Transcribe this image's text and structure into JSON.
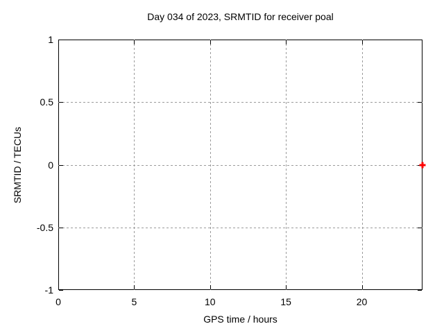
{
  "colors": {
    "background": "#ffffff",
    "axis": "#000000",
    "grid": "#9a9a9a",
    "text": "#000000",
    "marker": "#ff0000"
  },
  "chart_data": {
    "type": "scatter",
    "title": "Day 034 of 2023, SRMTID for receiver poal",
    "xlabel": "GPS time / hours",
    "ylabel": "SRMTID / TECUs",
    "xlim": [
      0,
      24
    ],
    "ylim": [
      -1,
      1
    ],
    "x_ticks": [
      0,
      5,
      10,
      15,
      20
    ],
    "y_ticks": [
      1,
      0.5,
      0,
      -0.5,
      -1
    ],
    "grid": true,
    "grid_style": "dashed",
    "legend": "none",
    "series": [
      {
        "name": "SRMTID",
        "marker": "plus",
        "color": "#ff0000",
        "points": [
          {
            "x": 24,
            "y": 0
          }
        ]
      }
    ]
  }
}
